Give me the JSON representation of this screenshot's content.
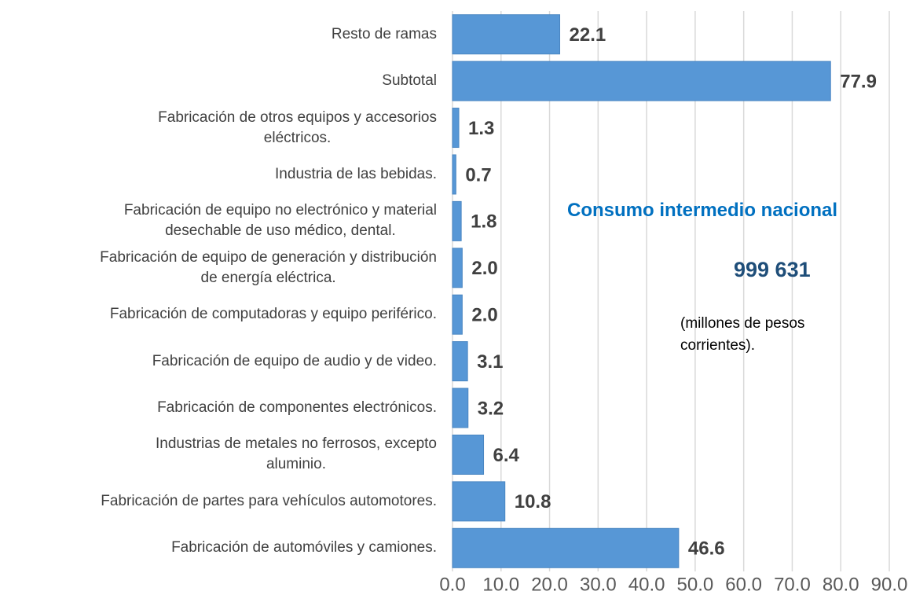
{
  "chart_data": {
    "type": "barh",
    "categories": [
      "Resto de ramas",
      "Subtotal",
      "Fabricación de otros equipos y accesorios\neléctricos.",
      "Industria de las bebidas.",
      "Fabricación de equipo no electrónico y material\ndesechable de uso médico, dental.",
      "Fabricación de equipo de generación y distribución\nde energía eléctrica.",
      "Fabricación de computadoras y equipo periférico.",
      "Fabricación de equipo de audio y de video.",
      "Fabricación de componentes electrónicos.",
      "Industrias de metales no ferrosos, excepto\naluminio.",
      "Fabricación de partes para vehículos automotores.",
      "Fabricación de automóviles y camiones."
    ],
    "values": [
      22.1,
      77.9,
      1.3,
      0.7,
      1.8,
      2.0,
      2.0,
      3.1,
      3.2,
      6.4,
      10.8,
      46.6
    ],
    "value_labels": [
      "22.1",
      "77.9",
      "1.3",
      "0.7",
      "1.8",
      "2.0",
      "2.0",
      "3.1",
      "3.2",
      "6.4",
      "10.8",
      "46.6"
    ],
    "color": "#5797d6",
    "xlim": [
      0,
      90
    ],
    "xticks": [
      {
        "value": 0,
        "label": "0.0"
      },
      {
        "value": 10,
        "label": "10.0"
      },
      {
        "value": 20,
        "label": "20.0"
      },
      {
        "value": 30,
        "label": "30.0"
      },
      {
        "value": 40,
        "label": "40.0"
      },
      {
        "value": 50,
        "label": "50.0"
      },
      {
        "value": 60,
        "label": "60.0"
      },
      {
        "value": 70,
        "label": "70.0"
      },
      {
        "value": 80,
        "label": "80.0"
      },
      {
        "value": 90,
        "label": "90.0"
      }
    ],
    "grid": true,
    "annotations": [
      "Consumo intermedio nacional",
      "999 631",
      "(millones de pesos\ncorrientes)."
    ]
  }
}
